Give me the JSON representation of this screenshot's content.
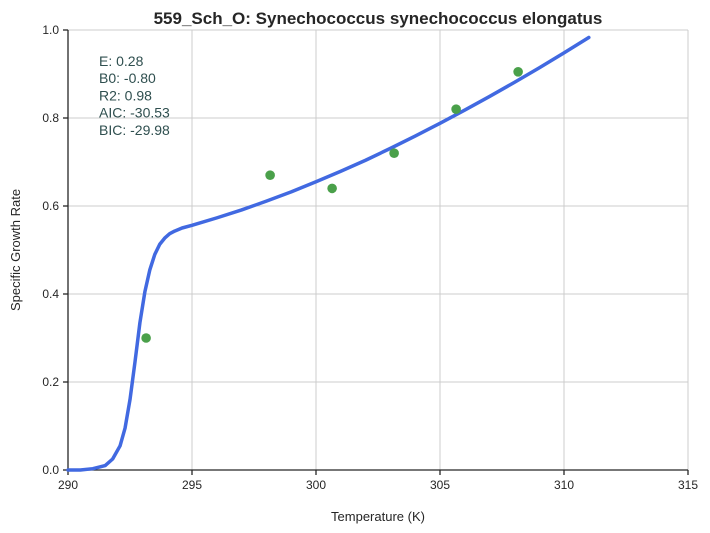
{
  "chart_data": {
    "type": "scatter",
    "title": "559_Sch_O: Synechococcus synechococcus elongatus",
    "xlabel": "Temperature (K)",
    "ylabel": "Specific Growth Rate",
    "xlim": [
      290,
      315
    ],
    "ylim": [
      0,
      1.0
    ],
    "xticks": [
      "290",
      "295",
      "300",
      "305",
      "310",
      "315"
    ],
    "yticks": [
      "0.0",
      "0.2",
      "0.4",
      "0.6",
      "0.8",
      "1.0"
    ],
    "grid": true,
    "series": [
      {
        "kind": "scatter",
        "color": "#4aa04a",
        "x": [
          293.15,
          298.15,
          300.65,
          303.15,
          305.65,
          308.15
        ],
        "y": [
          0.3,
          0.67,
          0.64,
          0.72,
          0.82,
          0.905
        ]
      },
      {
        "kind": "line",
        "color": "#4169e1",
        "x": [
          290.0,
          290.5,
          291.0,
          291.5,
          291.8,
          292.1,
          292.3,
          292.5,
          292.7,
          292.9,
          293.1,
          293.3,
          293.5,
          293.7,
          293.9,
          294.1,
          294.3,
          294.6,
          295.0,
          296.0,
          297.0,
          298.0,
          299.0,
          300.0,
          301.0,
          302.0,
          303.0,
          304.0,
          305.0,
          306.0,
          307.0,
          308.0,
          309.0,
          310.0,
          311.0
        ],
        "y": [
          0.0,
          0.0,
          0.003,
          0.01,
          0.025,
          0.055,
          0.095,
          0.16,
          0.245,
          0.335,
          0.405,
          0.455,
          0.49,
          0.513,
          0.527,
          0.537,
          0.543,
          0.55,
          0.556,
          0.573,
          0.591,
          0.611,
          0.632,
          0.655,
          0.679,
          0.704,
          0.731,
          0.759,
          0.788,
          0.818,
          0.849,
          0.881,
          0.914,
          0.948,
          0.983
        ]
      }
    ],
    "annotations": [
      {
        "label": "E:",
        "value": "0.28"
      },
      {
        "label": "B0:",
        "value": "-0.80"
      },
      {
        "label": "R2:",
        "value": "0.98"
      },
      {
        "label": "AIC:",
        "value": "-30.53"
      },
      {
        "label": "BIC:",
        "value": "-29.98"
      }
    ],
    "annotation_color": "#2f4f4f"
  }
}
